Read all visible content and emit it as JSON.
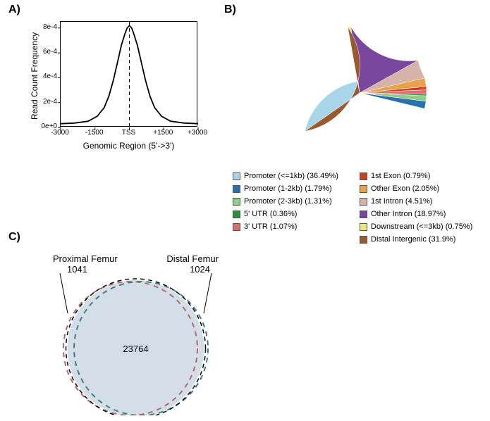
{
  "panelA": {
    "label": "A)",
    "type": "line",
    "xlabel": "Genomic Region (5'->3')",
    "ylabel": "Read Count Frequency",
    "xticks": [
      -3000,
      -1500,
      "TSS",
      1500,
      3000
    ],
    "xtick_vals": [
      -3000,
      -1500,
      0,
      1500,
      3000
    ],
    "yticks": [
      "0e+0",
      "2e-4",
      "4e-4",
      "6e-4",
      "8e-4"
    ],
    "ytick_vals": [
      0,
      0.0002,
      0.0004,
      0.0006,
      0.0008
    ],
    "xlim": [
      -3000,
      3000
    ],
    "ylim": [
      0,
      0.00085
    ],
    "curve_color": "#000000",
    "curve_width": 1.8,
    "dashed_line_x": 0,
    "background": "#ffffff",
    "plot_border_color": "#000000",
    "curve_points_x": [
      -3000,
      -2400,
      -1800,
      -1400,
      -1100,
      -900,
      -700,
      -500,
      -350,
      -200,
      -100,
      0,
      100,
      200,
      350,
      500,
      700,
      900,
      1100,
      1400,
      1800,
      2400,
      3000
    ],
    "curve_points_y": [
      3e-05,
      3.5e-05,
      5e-05,
      9e-05,
      0.00016,
      0.00025,
      0.00038,
      0.00054,
      0.00066,
      0.00075,
      0.0008,
      0.00082,
      0.0008,
      0.00075,
      0.00066,
      0.00054,
      0.00038,
      0.00025,
      0.00016,
      9e-05,
      5e-05,
      3.5e-05,
      3e-05
    ]
  },
  "panelB": {
    "label": "B)",
    "type": "pie",
    "start_angle_deg": 165,
    "direction": "clockwise",
    "background": "#ffffff",
    "slices": [
      {
        "label": "Promoter (<=1kb) (36.49%)",
        "value": 36.49,
        "color": "#a9d5e8"
      },
      {
        "label": "Promoter (1-2kb) (1.79%)",
        "value": 1.79,
        "color": "#2a6fb0"
      },
      {
        "label": "Promoter (2-3kb) (1.31%)",
        "value": 1.31,
        "color": "#8fce8a"
      },
      {
        "label": "5' UTR (0.36%)",
        "value": 0.36,
        "color": "#2f8a3a"
      },
      {
        "label": "3' UTR (1.07%)",
        "value": 1.07,
        "color": "#e06b6b"
      },
      {
        "label": "1st Exon (0.79%)",
        "value": 0.79,
        "color": "#c3461f"
      },
      {
        "label": "Other Exon (2.05%)",
        "value": 2.05,
        "color": "#e8a24a"
      },
      {
        "label": "1st Intron (4.51%)",
        "value": 4.51,
        "color": "#d6b3a8"
      },
      {
        "label": "Other Intron (18.97%)",
        "value": 18.97,
        "color": "#7a479e"
      },
      {
        "label": "Downstream (<=3kb) (0.75%)",
        "value": 0.75,
        "color": "#e9e87a"
      },
      {
        "label": "Distal Intergenic (31.9%)",
        "value": 31.9,
        "color": "#9a5a2e"
      }
    ],
    "legend_left_count": 5,
    "legend_fontsize": 11
  },
  "panelC": {
    "label": "C)",
    "type": "venn2",
    "set1": {
      "name": "Proximal Femur",
      "only": 1041,
      "color": "#f2c6c6",
      "stroke": "#b36a6a"
    },
    "set2": {
      "name": "Distal Femur",
      "only": 1024,
      "color": "#c7d9d4",
      "stroke": "#3f7f7a"
    },
    "intersection": 23764,
    "overlap_fill": "#d4dee8",
    "background": "#ffffff",
    "circle_stroke_dash": "7,6",
    "circle_stroke_width": 2,
    "label_fontsize": 13
  }
}
